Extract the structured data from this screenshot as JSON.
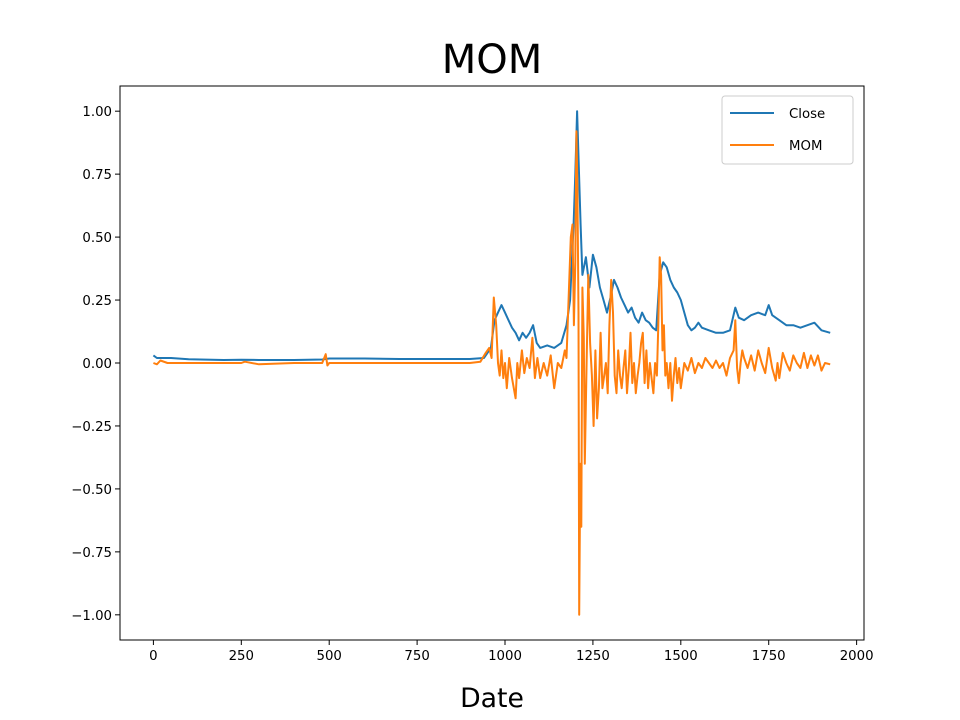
{
  "chart_data": {
    "type": "line",
    "title": "MOM",
    "xlabel": "Date",
    "ylabel": "",
    "xlim": [
      -95,
      2021
    ],
    "ylim": [
      -1.1,
      1.1
    ],
    "xticks": [
      0,
      250,
      500,
      750,
      1000,
      1250,
      1500,
      1750,
      2000
    ],
    "xtick_labels": [
      "0",
      "250",
      "500",
      "750",
      "1000",
      "1250",
      "1500",
      "1750",
      "2000"
    ],
    "yticks": [
      1.0,
      0.75,
      0.5,
      0.25,
      0.0,
      -0.25,
      -0.5,
      -0.75,
      -1.0
    ],
    "ytick_labels": [
      "1.00",
      "0.75",
      "0.50",
      "0.25",
      "0.00",
      "−0.25",
      "−0.50",
      "−0.75",
      "−1.00"
    ],
    "grid": false,
    "legend_position": "upper right",
    "series": [
      {
        "name": "Close",
        "color": "#1f77b4",
        "points": [
          [
            0,
            0.03
          ],
          [
            10,
            0.02
          ],
          [
            50,
            0.02
          ],
          [
            100,
            0.015
          ],
          [
            200,
            0.012
          ],
          [
            250,
            0.013
          ],
          [
            300,
            0.012
          ],
          [
            400,
            0.012
          ],
          [
            480,
            0.014
          ],
          [
            500,
            0.018
          ],
          [
            600,
            0.018
          ],
          [
            700,
            0.016
          ],
          [
            800,
            0.016
          ],
          [
            900,
            0.016
          ],
          [
            940,
            0.02
          ],
          [
            960,
            0.06
          ],
          [
            970,
            0.17
          ],
          [
            980,
            0.2
          ],
          [
            990,
            0.23
          ],
          [
            1000,
            0.2
          ],
          [
            1010,
            0.17
          ],
          [
            1020,
            0.14
          ],
          [
            1030,
            0.12
          ],
          [
            1040,
            0.09
          ],
          [
            1050,
            0.12
          ],
          [
            1060,
            0.1
          ],
          [
            1070,
            0.12
          ],
          [
            1080,
            0.15
          ],
          [
            1090,
            0.08
          ],
          [
            1100,
            0.06
          ],
          [
            1120,
            0.07
          ],
          [
            1140,
            0.06
          ],
          [
            1160,
            0.08
          ],
          [
            1175,
            0.15
          ],
          [
            1185,
            0.25
          ],
          [
            1190,
            0.4
          ],
          [
            1195,
            0.55
          ],
          [
            1200,
            0.75
          ],
          [
            1205,
            1.0
          ],
          [
            1210,
            0.78
          ],
          [
            1215,
            0.55
          ],
          [
            1220,
            0.35
          ],
          [
            1230,
            0.42
          ],
          [
            1240,
            0.3
          ],
          [
            1250,
            0.43
          ],
          [
            1260,
            0.38
          ],
          [
            1270,
            0.3
          ],
          [
            1280,
            0.25
          ],
          [
            1290,
            0.2
          ],
          [
            1300,
            0.26
          ],
          [
            1310,
            0.33
          ],
          [
            1320,
            0.3
          ],
          [
            1330,
            0.26
          ],
          [
            1340,
            0.23
          ],
          [
            1350,
            0.2
          ],
          [
            1360,
            0.22
          ],
          [
            1370,
            0.18
          ],
          [
            1380,
            0.16
          ],
          [
            1390,
            0.2
          ],
          [
            1400,
            0.17
          ],
          [
            1410,
            0.16
          ],
          [
            1420,
            0.14
          ],
          [
            1430,
            0.13
          ],
          [
            1440,
            0.35
          ],
          [
            1450,
            0.4
          ],
          [
            1460,
            0.38
          ],
          [
            1470,
            0.33
          ],
          [
            1480,
            0.3
          ],
          [
            1490,
            0.28
          ],
          [
            1500,
            0.25
          ],
          [
            1510,
            0.2
          ],
          [
            1520,
            0.15
          ],
          [
            1530,
            0.13
          ],
          [
            1540,
            0.14
          ],
          [
            1550,
            0.16
          ],
          [
            1560,
            0.14
          ],
          [
            1580,
            0.13
          ],
          [
            1600,
            0.12
          ],
          [
            1620,
            0.12
          ],
          [
            1640,
            0.13
          ],
          [
            1655,
            0.22
          ],
          [
            1665,
            0.18
          ],
          [
            1680,
            0.17
          ],
          [
            1700,
            0.19
          ],
          [
            1720,
            0.2
          ],
          [
            1740,
            0.19
          ],
          [
            1750,
            0.23
          ],
          [
            1760,
            0.19
          ],
          [
            1780,
            0.17
          ],
          [
            1800,
            0.15
          ],
          [
            1820,
            0.15
          ],
          [
            1840,
            0.14
          ],
          [
            1860,
            0.15
          ],
          [
            1880,
            0.16
          ],
          [
            1900,
            0.13
          ],
          [
            1925,
            0.12
          ]
        ]
      },
      {
        "name": "MOM",
        "color": "#ff7f0e",
        "points": [
          [
            0,
            0.0
          ],
          [
            10,
            -0.005
          ],
          [
            20,
            0.01
          ],
          [
            40,
            0.0
          ],
          [
            60,
            0.0
          ],
          [
            100,
            0.0
          ],
          [
            150,
            0.0
          ],
          [
            200,
            0.0
          ],
          [
            250,
            0.0
          ],
          [
            260,
            0.005
          ],
          [
            300,
            -0.005
          ],
          [
            400,
            0.0
          ],
          [
            480,
            0.0
          ],
          [
            490,
            0.035
          ],
          [
            495,
            -0.01
          ],
          [
            500,
            0.0
          ],
          [
            600,
            0.0
          ],
          [
            700,
            0.0
          ],
          [
            800,
            0.0
          ],
          [
            900,
            0.0
          ],
          [
            930,
            0.005
          ],
          [
            945,
            0.04
          ],
          [
            955,
            0.06
          ],
          [
            962,
            0.02
          ],
          [
            968,
            0.26
          ],
          [
            975,
            0.15
          ],
          [
            980,
            0.0
          ],
          [
            985,
            -0.05
          ],
          [
            990,
            0.05
          ],
          [
            995,
            -0.06
          ],
          [
            1000,
            0.0
          ],
          [
            1005,
            -0.1
          ],
          [
            1012,
            0.02
          ],
          [
            1020,
            -0.06
          ],
          [
            1030,
            -0.14
          ],
          [
            1035,
            0.0
          ],
          [
            1040,
            -0.06
          ],
          [
            1048,
            0.05
          ],
          [
            1055,
            -0.04
          ],
          [
            1062,
            0.02
          ],
          [
            1070,
            -0.02
          ],
          [
            1078,
            0.1
          ],
          [
            1085,
            -0.06
          ],
          [
            1092,
            0.02
          ],
          [
            1100,
            -0.06
          ],
          [
            1110,
            0.0
          ],
          [
            1120,
            -0.05
          ],
          [
            1130,
            0.03
          ],
          [
            1140,
            -0.1
          ],
          [
            1150,
            0.0
          ],
          [
            1160,
            -0.02
          ],
          [
            1170,
            0.05
          ],
          [
            1175,
            0.02
          ],
          [
            1182,
            0.3
          ],
          [
            1187,
            0.5
          ],
          [
            1192,
            0.55
          ],
          [
            1196,
            0.15
          ],
          [
            1200,
            0.4
          ],
          [
            1203,
            0.92
          ],
          [
            1206,
            0.7
          ],
          [
            1209,
            0.2
          ],
          [
            1211,
            -1.0
          ],
          [
            1214,
            -0.4
          ],
          [
            1217,
            -0.65
          ],
          [
            1220,
            0.3
          ],
          [
            1224,
            0.1
          ],
          [
            1227,
            -0.4
          ],
          [
            1232,
            0.0
          ],
          [
            1237,
            0.35
          ],
          [
            1242,
            0.08
          ],
          [
            1247,
            -0.05
          ],
          [
            1252,
            -0.25
          ],
          [
            1257,
            0.05
          ],
          [
            1262,
            -0.22
          ],
          [
            1267,
            -0.1
          ],
          [
            1272,
            0.12
          ],
          [
            1277,
            -0.1
          ],
          [
            1282,
            -0.05
          ],
          [
            1287,
            0.0
          ],
          [
            1292,
            -0.12
          ],
          [
            1297,
            0.15
          ],
          [
            1302,
            0.33
          ],
          [
            1307,
            0.2
          ],
          [
            1312,
            -0.05
          ],
          [
            1317,
            -0.12
          ],
          [
            1322,
            0.05
          ],
          [
            1327,
            -0.05
          ],
          [
            1332,
            -0.1
          ],
          [
            1337,
            -0.02
          ],
          [
            1342,
            0.05
          ],
          [
            1347,
            -0.12
          ],
          [
            1352,
            -0.02
          ],
          [
            1357,
            0.12
          ],
          [
            1362,
            -0.08
          ],
          [
            1367,
            0.0
          ],
          [
            1372,
            -0.12
          ],
          [
            1377,
            -0.05
          ],
          [
            1382,
            0.0
          ],
          [
            1387,
            0.08
          ],
          [
            1392,
            0.12
          ],
          [
            1397,
            -0.08
          ],
          [
            1402,
            0.05
          ],
          [
            1407,
            -0.1
          ],
          [
            1412,
            0.0
          ],
          [
            1417,
            -0.06
          ],
          [
            1422,
            -0.12
          ],
          [
            1427,
            0.0
          ],
          [
            1432,
            -0.05
          ],
          [
            1436,
            0.15
          ],
          [
            1440,
            0.42
          ],
          [
            1444,
            0.35
          ],
          [
            1448,
            0.05
          ],
          [
            1452,
            0.15
          ],
          [
            1456,
            -0.05
          ],
          [
            1460,
            0.0
          ],
          [
            1465,
            -0.1
          ],
          [
            1470,
            0.0
          ],
          [
            1475,
            -0.15
          ],
          [
            1480,
            -0.05
          ],
          [
            1485,
            0.02
          ],
          [
            1490,
            -0.08
          ],
          [
            1495,
            -0.02
          ],
          [
            1500,
            -0.1
          ],
          [
            1510,
            0.0
          ],
          [
            1520,
            -0.03
          ],
          [
            1530,
            0.02
          ],
          [
            1540,
            -0.04
          ],
          [
            1550,
            0.0
          ],
          [
            1560,
            -0.02
          ],
          [
            1570,
            0.02
          ],
          [
            1580,
            0.0
          ],
          [
            1590,
            -0.02
          ],
          [
            1600,
            0.01
          ],
          [
            1610,
            -0.02
          ],
          [
            1620,
            0.0
          ],
          [
            1630,
            -0.05
          ],
          [
            1640,
            0.02
          ],
          [
            1650,
            0.05
          ],
          [
            1655,
            0.17
          ],
          [
            1660,
            -0.02
          ],
          [
            1665,
            -0.08
          ],
          [
            1670,
            0.0
          ],
          [
            1675,
            0.05
          ],
          [
            1680,
            0.02
          ],
          [
            1690,
            -0.02
          ],
          [
            1700,
            0.03
          ],
          [
            1710,
            -0.03
          ],
          [
            1720,
            0.05
          ],
          [
            1730,
            0.0
          ],
          [
            1740,
            -0.04
          ],
          [
            1750,
            0.06
          ],
          [
            1760,
            -0.02
          ],
          [
            1770,
            -0.07
          ],
          [
            1775,
            0.0
          ],
          [
            1780,
            -0.06
          ],
          [
            1790,
            0.04
          ],
          [
            1800,
            0.0
          ],
          [
            1810,
            -0.03
          ],
          [
            1820,
            0.03
          ],
          [
            1830,
            0.0
          ],
          [
            1840,
            -0.02
          ],
          [
            1850,
            0.04
          ],
          [
            1860,
            -0.02
          ],
          [
            1870,
            0.03
          ],
          [
            1880,
            -0.01
          ],
          [
            1890,
            0.03
          ],
          [
            1900,
            -0.03
          ],
          [
            1910,
            0.0
          ],
          [
            1925,
            -0.005
          ]
        ]
      }
    ]
  }
}
